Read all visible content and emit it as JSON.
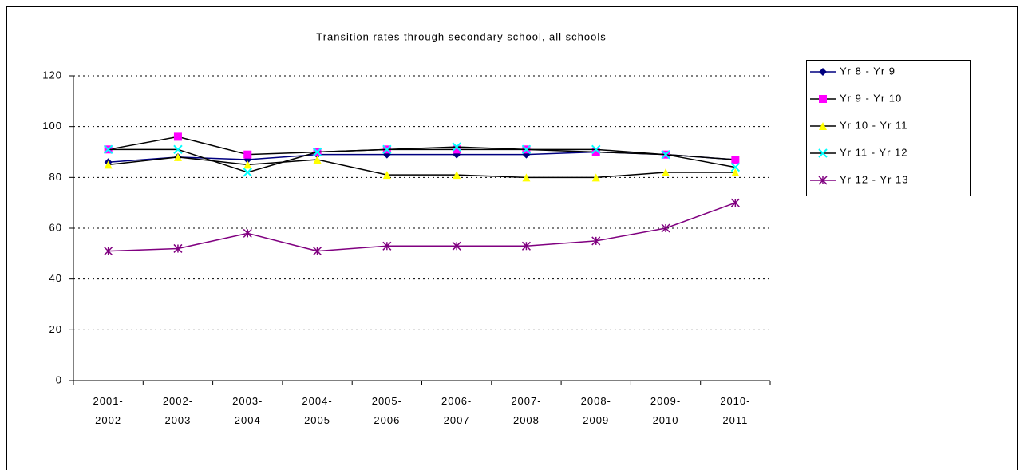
{
  "chart_data": {
    "type": "line",
    "title": "Transition rates through secondary school, all schools",
    "categories": [
      "2001-2002",
      "2002-2003",
      "2003-2004",
      "2004-2005",
      "2005-2006",
      "2006-2007",
      "2007-2008",
      "2008-2009",
      "2009-2010",
      "2010-2011"
    ],
    "ylim": [
      0,
      120
    ],
    "yticks": [
      0,
      20,
      40,
      60,
      80,
      100,
      120
    ],
    "grid": true,
    "legend": "right",
    "series": [
      {
        "name": "Yr 8 - Yr 9",
        "color": "#000080",
        "line_color": "#000080",
        "marker": "diamond",
        "values": [
          86,
          88,
          87,
          89,
          89,
          89,
          89,
          90,
          89,
          87
        ]
      },
      {
        "name": "Yr 9 - Yr 10",
        "color": "#ff00ff",
        "line_color": "#000000",
        "marker": "square",
        "values": [
          91,
          96,
          89,
          90,
          91,
          91,
          91,
          90,
          89,
          87
        ]
      },
      {
        "name": "Yr 10 - Yr 11",
        "color": "#ffff00",
        "line_color": "#000000",
        "marker": "triangle",
        "values": [
          85,
          88,
          85,
          87,
          81,
          81,
          80,
          80,
          82,
          82
        ]
      },
      {
        "name": "Yr 11 - Yr 12",
        "color": "#00ffff",
        "line_color": "#000000",
        "marker": "x",
        "values": [
          91,
          91,
          82,
          90,
          91,
          92,
          91,
          91,
          89,
          84
        ]
      },
      {
        "name": "Yr 12 - Yr 13",
        "color": "#800080",
        "line_color": "#800080",
        "marker": "star",
        "values": [
          51,
          52,
          58,
          51,
          53,
          53,
          53,
          55,
          60,
          70
        ]
      }
    ]
  }
}
